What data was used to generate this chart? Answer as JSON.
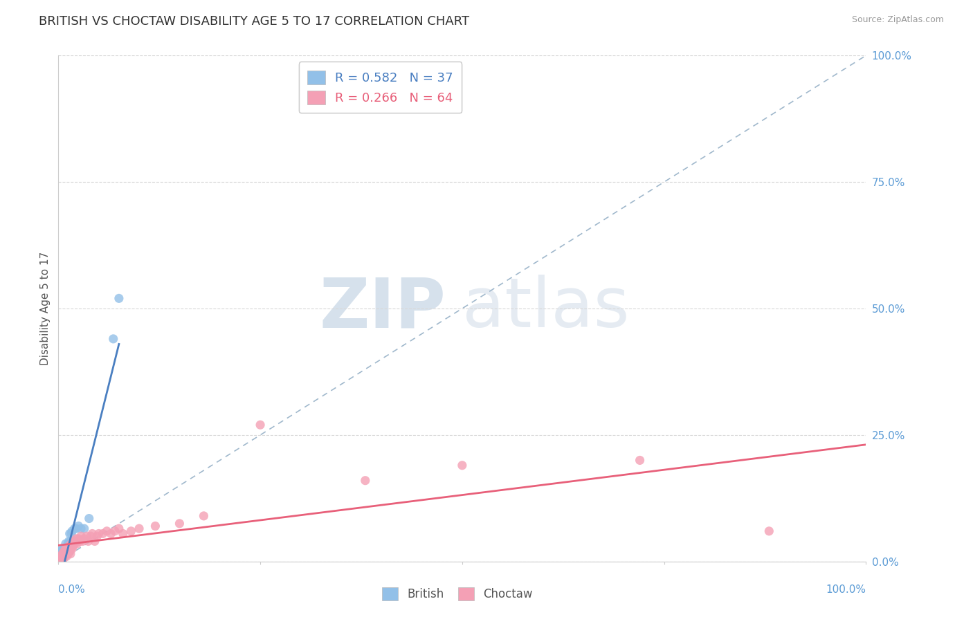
{
  "title": "BRITISH VS CHOCTAW DISABILITY AGE 5 TO 17 CORRELATION CHART",
  "source_text": "Source: ZipAtlas.com",
  "ylabel": "Disability Age 5 to 17",
  "ytick_labels": [
    "0.0%",
    "25.0%",
    "50.0%",
    "75.0%",
    "100.0%"
  ],
  "ytick_values": [
    0.0,
    0.25,
    0.5,
    0.75,
    1.0
  ],
  "title_color": "#333333",
  "title_fontsize": 13,
  "axis_label_color": "#5b9bd5",
  "legend_british_label": "British",
  "legend_choctaw_label": "Choctaw",
  "british_R": 0.582,
  "british_N": 37,
  "choctaw_R": 0.266,
  "choctaw_N": 64,
  "british_color": "#92c0e8",
  "choctaw_color": "#f4a0b5",
  "british_line_color": "#4a7fc1",
  "choctaw_line_color": "#e8607a",
  "ref_line_color": "#a0b8cc",
  "grid_color": "#d8d8d8",
  "british_x": [
    0.003,
    0.004,
    0.005,
    0.006,
    0.006,
    0.007,
    0.008,
    0.008,
    0.008,
    0.009,
    0.009,
    0.01,
    0.01,
    0.011,
    0.011,
    0.012,
    0.012,
    0.012,
    0.013,
    0.013,
    0.014,
    0.014,
    0.015,
    0.015,
    0.016,
    0.016,
    0.017,
    0.018,
    0.019,
    0.02,
    0.022,
    0.025,
    0.028,
    0.032,
    0.038,
    0.068,
    0.075
  ],
  "british_y": [
    0.02,
    0.01,
    0.025,
    0.005,
    0.015,
    0.025,
    0.015,
    0.025,
    0.01,
    0.035,
    0.015,
    0.02,
    0.015,
    0.025,
    0.02,
    0.03,
    0.025,
    0.035,
    0.025,
    0.04,
    0.055,
    0.02,
    0.03,
    0.04,
    0.035,
    0.055,
    0.06,
    0.04,
    0.04,
    0.065,
    0.065,
    0.07,
    0.065,
    0.065,
    0.085,
    0.44,
    0.52
  ],
  "choctaw_x": [
    0.002,
    0.003,
    0.004,
    0.005,
    0.005,
    0.006,
    0.006,
    0.007,
    0.007,
    0.008,
    0.008,
    0.009,
    0.009,
    0.01,
    0.01,
    0.011,
    0.011,
    0.012,
    0.012,
    0.013,
    0.013,
    0.014,
    0.014,
    0.015,
    0.015,
    0.016,
    0.016,
    0.017,
    0.018,
    0.019,
    0.019,
    0.02,
    0.021,
    0.022,
    0.023,
    0.024,
    0.025,
    0.027,
    0.028,
    0.03,
    0.032,
    0.035,
    0.037,
    0.04,
    0.042,
    0.045,
    0.048,
    0.05,
    0.055,
    0.06,
    0.065,
    0.07,
    0.075,
    0.08,
    0.09,
    0.1,
    0.12,
    0.15,
    0.18,
    0.25,
    0.38,
    0.5,
    0.72,
    0.88
  ],
  "choctaw_y": [
    0.01,
    0.005,
    0.008,
    0.01,
    0.015,
    0.005,
    0.015,
    0.01,
    0.02,
    0.012,
    0.02,
    0.015,
    0.025,
    0.01,
    0.02,
    0.02,
    0.025,
    0.015,
    0.02,
    0.025,
    0.03,
    0.02,
    0.03,
    0.015,
    0.025,
    0.03,
    0.035,
    0.025,
    0.03,
    0.035,
    0.04,
    0.035,
    0.04,
    0.045,
    0.035,
    0.04,
    0.045,
    0.04,
    0.05,
    0.04,
    0.045,
    0.05,
    0.04,
    0.05,
    0.055,
    0.04,
    0.05,
    0.055,
    0.055,
    0.06,
    0.055,
    0.06,
    0.065,
    0.055,
    0.06,
    0.065,
    0.07,
    0.075,
    0.09,
    0.27,
    0.16,
    0.19,
    0.2,
    0.06
  ]
}
